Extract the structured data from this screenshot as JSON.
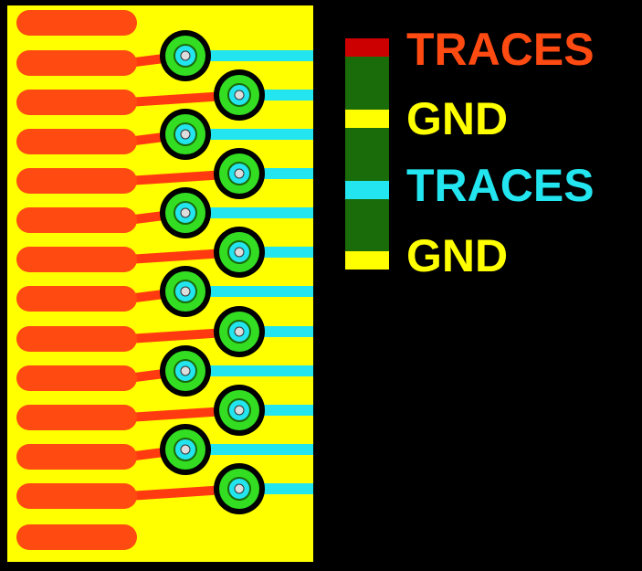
{
  "legend": {
    "layers": [
      {
        "label": "TRACES"
      },
      {
        "label": "GND"
      },
      {
        "label": "TRACES"
      },
      {
        "label": "GND"
      }
    ]
  }
}
